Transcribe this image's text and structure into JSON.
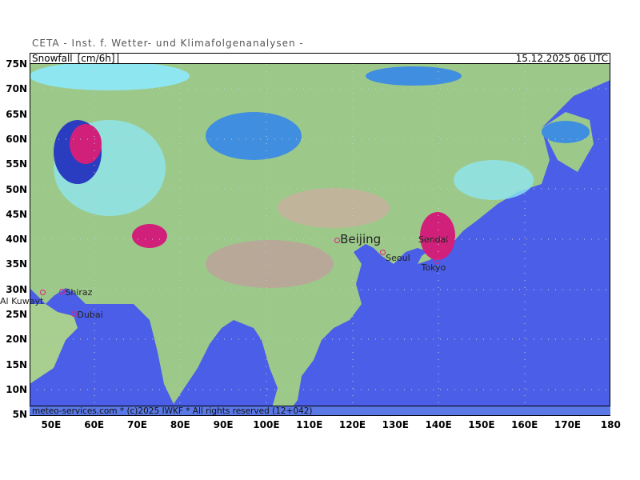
{
  "header": "CETA - Inst. f. Wetter- und Klimafolgenanalysen -",
  "variable": "Snowfall_[cm/6h]",
  "valid_time": "15.12.2025 06 UTC",
  "footer": "meteo-services.com * (c)2025 IWKF * All rights reserved (12+042)",
  "lat_labels": [
    "75N",
    "70N",
    "65N",
    "60N",
    "55N",
    "50N",
    "45N",
    "40N",
    "35N",
    "30N",
    "25N",
    "20N",
    "15N",
    "10N",
    "5N"
  ],
  "lon_labels": [
    "50E",
    "60E",
    "70E",
    "80E",
    "90E",
    "100E",
    "110E",
    "120E",
    "130E",
    "140E",
    "150E",
    "160E",
    "170E",
    "180"
  ],
  "cities": [
    {
      "name": "Beijing",
      "lon": 116.4,
      "lat": 39.9
    },
    {
      "name": "Seoul",
      "lon": 127,
      "lat": 37.5
    },
    {
      "name": "Sendai",
      "lon": 140.9,
      "lat": 38.3
    },
    {
      "name": "Tokyo",
      "lon": 139.7,
      "lat": 35.7
    },
    {
      "name": "Al Kuwayt",
      "lon": 48,
      "lat": 29.4
    },
    {
      "name": "Shiraz",
      "lon": 52.5,
      "lat": 29.6
    },
    {
      "name": "Dubai",
      "lon": 55.3,
      "lat": 25.2
    }
  ],
  "colors": {
    "ocean": "#4a5ee8",
    "land": "#9cc98a",
    "mountain": "#b8a898",
    "snow_light": "#8ee6f0",
    "snow_mid": "#3f8ee0",
    "snow_heavy": "#2a3cc0",
    "snow_extreme": "#d0207a"
  }
}
